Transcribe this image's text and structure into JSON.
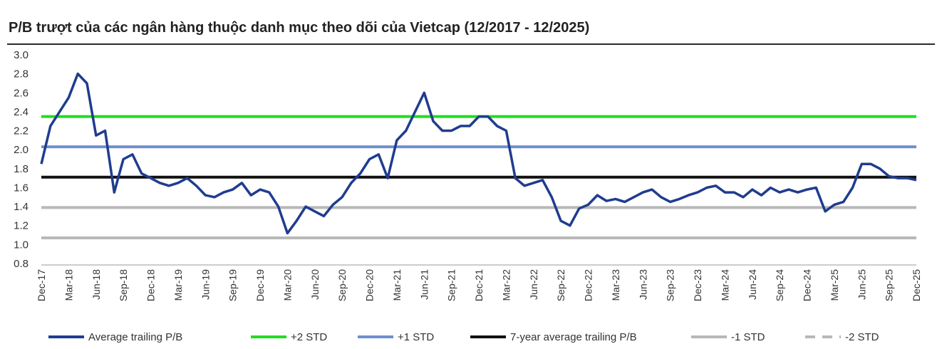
{
  "chart_data": {
    "type": "line",
    "title": "P/B trượt của các ngân hàng thuộc danh mục theo dõi của Vietcap (12/2017 - 12/2025)",
    "ylim": [
      0.8,
      3.0
    ],
    "yticks": [
      "3.0",
      "2.8",
      "2.6",
      "2.4",
      "2.2",
      "2.0",
      "1.8",
      "1.6",
      "1.4",
      "1.2",
      "1.0",
      "0.8"
    ],
    "x_tick_labels": [
      "Dec-17",
      "Mar-18",
      "Jun-18",
      "Sep-18",
      "Dec-18",
      "Mar-19",
      "Jun-19",
      "Sep-19",
      "Dec-19",
      "Mar-20",
      "Jun-20",
      "Sep-20",
      "Dec-20",
      "Mar-21",
      "Jun-21",
      "Sep-21",
      "Dec-21",
      "Mar-22",
      "Jun-22",
      "Sep-22",
      "Dec-22",
      "Mar-23",
      "Jun-23",
      "Sep-23",
      "Dec-23",
      "Mar-24",
      "Jun-24",
      "Sep-24",
      "Dec-24",
      "Mar-25",
      "Jun-25",
      "Sep-25",
      "Dec-25"
    ],
    "series": [
      {
        "name": "Average trailing P/B",
        "color": "#1f3c8f",
        "x": [
          "Dec-17",
          "Jan-18",
          "Feb-18",
          "Mar-18",
          "Apr-18",
          "May-18",
          "Jun-18",
          "Jul-18",
          "Aug-18",
          "Sep-18",
          "Oct-18",
          "Nov-18",
          "Dec-18",
          "Jan-19",
          "Feb-19",
          "Mar-19",
          "Apr-19",
          "May-19",
          "Jun-19",
          "Jul-19",
          "Aug-19",
          "Sep-19",
          "Oct-19",
          "Nov-19",
          "Dec-19",
          "Jan-20",
          "Feb-20",
          "Mar-20",
          "Apr-20",
          "May-20",
          "Jun-20",
          "Jul-20",
          "Aug-20",
          "Sep-20",
          "Oct-20",
          "Nov-20",
          "Dec-20",
          "Jan-21",
          "Feb-21",
          "Mar-21",
          "Apr-21",
          "May-21",
          "Jun-21",
          "Jul-21",
          "Aug-21",
          "Sep-21",
          "Oct-21",
          "Nov-21",
          "Dec-21",
          "Jan-22",
          "Feb-22",
          "Mar-22",
          "Apr-22",
          "May-22",
          "Jun-22",
          "Jul-22",
          "Aug-22",
          "Sep-22",
          "Oct-22",
          "Nov-22",
          "Dec-22",
          "Jan-23",
          "Feb-23",
          "Mar-23",
          "Apr-23",
          "May-23",
          "Jun-23",
          "Jul-23",
          "Aug-23",
          "Sep-23",
          "Oct-23",
          "Nov-23",
          "Dec-23",
          "Jan-24",
          "Feb-24",
          "Mar-24",
          "Apr-24",
          "May-24",
          "Jun-24",
          "Jul-24",
          "Aug-24",
          "Sep-24",
          "Oct-24",
          "Nov-24",
          "Dec-24",
          "Jan-25",
          "Feb-25",
          "Mar-25",
          "Apr-25",
          "May-25",
          "Jun-25",
          "Jul-25",
          "Aug-25",
          "Sep-25",
          "Oct-25",
          "Nov-25",
          "Dec-25"
        ],
        "values": [
          1.85,
          2.25,
          2.4,
          2.55,
          2.8,
          2.7,
          2.15,
          2.2,
          1.55,
          1.9,
          1.95,
          1.75,
          1.7,
          1.65,
          1.62,
          1.65,
          1.7,
          1.62,
          1.52,
          1.5,
          1.55,
          1.58,
          1.65,
          1.52,
          1.58,
          1.55,
          1.4,
          1.12,
          1.25,
          1.4,
          1.35,
          1.3,
          1.42,
          1.5,
          1.65,
          1.75,
          1.9,
          1.95,
          1.7,
          2.1,
          2.2,
          2.4,
          2.6,
          2.3,
          2.2,
          2.2,
          2.25,
          2.25,
          2.35,
          2.35,
          2.25,
          2.2,
          1.7,
          1.62,
          1.65,
          1.68,
          1.5,
          1.25,
          1.2,
          1.38,
          1.42,
          1.52,
          1.46,
          1.48,
          1.45,
          1.5,
          1.55,
          1.58,
          1.5,
          1.45,
          1.48,
          1.52,
          1.55,
          1.6,
          1.62,
          1.55,
          1.55,
          1.5,
          1.58,
          1.52,
          1.6,
          1.55,
          1.58,
          1.55,
          1.58,
          1.6,
          1.35,
          1.42,
          1.45,
          1.6,
          1.85,
          1.85,
          1.8,
          1.72,
          1.7,
          1.7,
          1.68
        ]
      }
    ],
    "reference_lines": [
      {
        "name": "+2 STD",
        "value": 2.35,
        "color": "#22dd22",
        "dash": false
      },
      {
        "name": "+1 STD",
        "value": 2.03,
        "color": "#6f8fd0",
        "dash": false
      },
      {
        "name": "7-year average trailing P/B",
        "value": 1.71,
        "color": "#111111",
        "dash": false
      },
      {
        "name": "-1 STD",
        "value": 1.39,
        "color": "#b8b8b8",
        "dash": false
      },
      {
        "name": "-2 STD",
        "value": 1.07,
        "color": "#b8b8b8",
        "dash": true
      }
    ],
    "legend": [
      {
        "label": "Average trailing P/B",
        "color": "#1f3c8f",
        "dash": false
      },
      {
        "label": "+2 STD",
        "color": "#22dd22",
        "dash": false
      },
      {
        "label": "+1 STD",
        "color": "#6f8fd0",
        "dash": false
      },
      {
        "label": "7-year average trailing P/B",
        "color": "#111111",
        "dash": false
      },
      {
        "label": "-1 STD",
        "color": "#b8b8b8",
        "dash": false
      },
      {
        "label": "-2 STD",
        "color": "#b8b8b8",
        "dash": true
      }
    ],
    "legend_placement": "bottom",
    "grid": false
  }
}
